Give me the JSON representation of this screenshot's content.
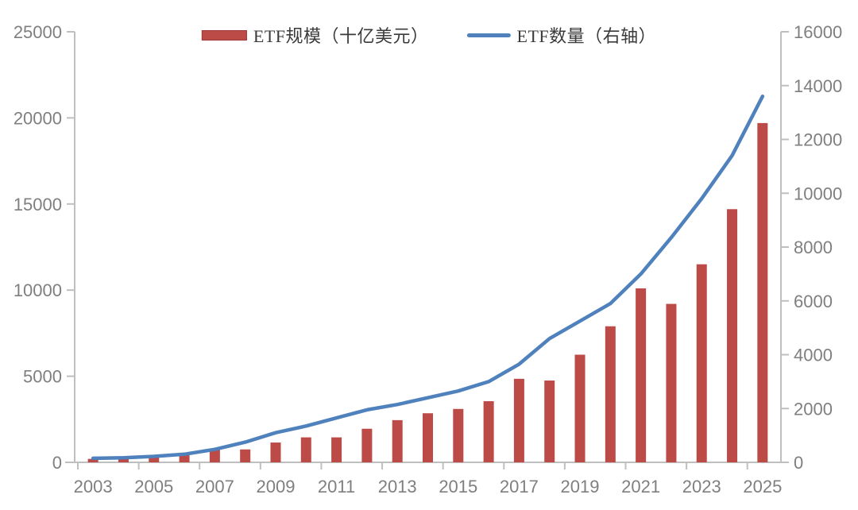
{
  "chart_data": {
    "type": "bar",
    "subtype": "combo-bar-line-dual-axis",
    "title": "",
    "categories": [
      "2003",
      "2004",
      "2005",
      "2006",
      "2007",
      "2008",
      "2009",
      "2010",
      "2011",
      "2012",
      "2013",
      "2014",
      "2015",
      "2016",
      "2017",
      "2018",
      "2019",
      "2020",
      "2021",
      "2022",
      "2023",
      "2024",
      "2025"
    ],
    "series": [
      {
        "name": "ETF规模（十亿美元）",
        "type": "bar",
        "axis": "left",
        "color": "#bc4a47",
        "values": [
          200,
          300,
          400,
          500,
          800,
          750,
          1150,
          1450,
          1450,
          1950,
          2450,
          2850,
          3100,
          3550,
          4850,
          4750,
          6250,
          7900,
          10100,
          9200,
          11500,
          14700,
          19700
        ]
      },
      {
        "name": "ETF数量（右轴）",
        "type": "line",
        "axis": "right",
        "color": "#4f81bd",
        "values": [
          150,
          170,
          220,
          300,
          480,
          750,
          1100,
          1350,
          1650,
          1950,
          2150,
          2400,
          2650,
          3000,
          3650,
          4600,
          5250,
          5900,
          7000,
          8350,
          9800,
          11400,
          13600
        ]
      }
    ],
    "x_axis": {
      "tick_labels": [
        "2003",
        "2005",
        "2007",
        "2009",
        "2011",
        "2013",
        "2015",
        "2017",
        "2019",
        "2021",
        "2023",
        "2025"
      ]
    },
    "left_axis": {
      "min": 0,
      "max": 25000,
      "step": 5000,
      "tick_labels": [
        "0",
        "5000",
        "10000",
        "15000",
        "20000",
        "25000"
      ]
    },
    "right_axis": {
      "min": 0,
      "max": 16000,
      "step": 2000,
      "tick_labels": [
        "0",
        "2000",
        "4000",
        "6000",
        "8000",
        "10000",
        "12000",
        "14000",
        "16000"
      ]
    },
    "legend": {
      "position": "top-center"
    },
    "grid": false,
    "colors": {
      "bar": "#bc4a47",
      "bar_border": "#9e3b39",
      "line": "#4f81bd",
      "axis": "#bfbfbf",
      "axis_label": "#7f7f7f",
      "legend_text": "#3a3a3a",
      "background": "#ffffff"
    }
  }
}
